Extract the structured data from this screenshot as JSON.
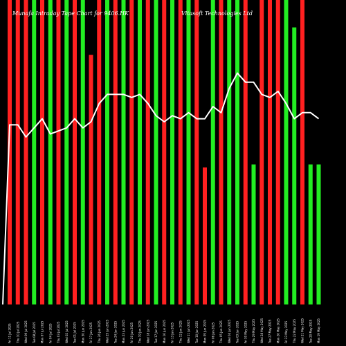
{
  "chart_data": {
    "type": "bar",
    "title_left": "Munafa Intraday Tape Chart for 9406.HK",
    "title_right": "Vitasoft Technologies Ltd",
    "categories": [
      "Fri 11 Jul 2025",
      "Thu 10 Jul 2025",
      "Wed 09 Jul 2025",
      "Tue 08 Jul 2025",
      "Mon 07 Jul 2025",
      "Fri 04 Jul 2025",
      "Thu 03 Jul 2025",
      "Wed 02 Jul 2025",
      "Tue 01 Jul 2025",
      "Mon 30 Jun 2025",
      "Fri 27 Jun 2025",
      "Thu 26 Jun 2025",
      "Wed 25 Jun 2025",
      "Tue 24 Jun 2025",
      "Mon 23 Jun 2025",
      "Fri 20 Jun 2025",
      "Thu 19 Jun 2025",
      "Wed 18 Jun 2025",
      "Tue 17 Jun 2025",
      "Mon 16 Jun 2025",
      "Fri 13 Jun 2025",
      "Thu 12 Jun 2025",
      "Wed 11 Jun 2025",
      "Tue 10 Jun 2025",
      "Mon 09 Jun 2025",
      "Fri 06 Jun 2025",
      "Thu 05 Jun 2025",
      "Wed 04 Jun 2025",
      "Tue 03 Jun 2025",
      "Fri 30 May 2025",
      "Thu 29 May 2025",
      "Wed 28 May 2025",
      "Tue 27 May 2025",
      "Mon 26 May 2025",
      "Fri 23 May 2025",
      "Thu 22 May 2025",
      "Wed 21 May 2025",
      "Tue 20 May 2025",
      "Mon 19 May 2025"
    ],
    "bar_height_fraction": [
      1.0,
      1.0,
      1.0,
      1.0,
      1.0,
      1.0,
      1.0,
      1.0,
      1.0,
      1.0,
      0.82,
      1.0,
      1.0,
      1.0,
      1.0,
      1.0,
      1.0,
      1.0,
      1.0,
      1.0,
      1.0,
      1.0,
      1.0,
      1.0,
      0.45,
      1.0,
      1.0,
      1.0,
      1.0,
      1.0,
      0.46,
      1.0,
      1.0,
      1.0,
      1.0,
      0.91,
      1.0,
      0.46,
      0.46
    ],
    "bar_colors": [
      "red",
      "red",
      "red",
      "green",
      "red",
      "green",
      "red",
      "green",
      "red",
      "green",
      "red",
      "red",
      "green",
      "red",
      "green",
      "red",
      "green",
      "red",
      "green",
      "red",
      "green",
      "red",
      "green",
      "red",
      "red",
      "green",
      "red",
      "green",
      "green",
      "red",
      "green",
      "red",
      "red",
      "red",
      "green",
      "green",
      "red",
      "green",
      "green"
    ],
    "line_values": [
      0.59,
      0.59,
      0.55,
      0.58,
      0.61,
      0.56,
      0.57,
      0.58,
      0.61,
      0.58,
      0.6,
      0.66,
      0.69,
      0.69,
      0.69,
      0.68,
      0.69,
      0.66,
      0.62,
      0.6,
      0.62,
      0.61,
      0.63,
      0.61,
      0.61,
      0.65,
      0.63,
      0.71,
      0.76,
      0.73,
      0.73,
      0.69,
      0.68,
      0.7,
      0.66,
      0.61,
      0.63,
      0.63,
      0.61
    ],
    "line_start_value": 0.0,
    "colors": {
      "red": "#ff2020",
      "green": "#22ee22",
      "line": "#ffffff",
      "background": "#000000"
    }
  }
}
